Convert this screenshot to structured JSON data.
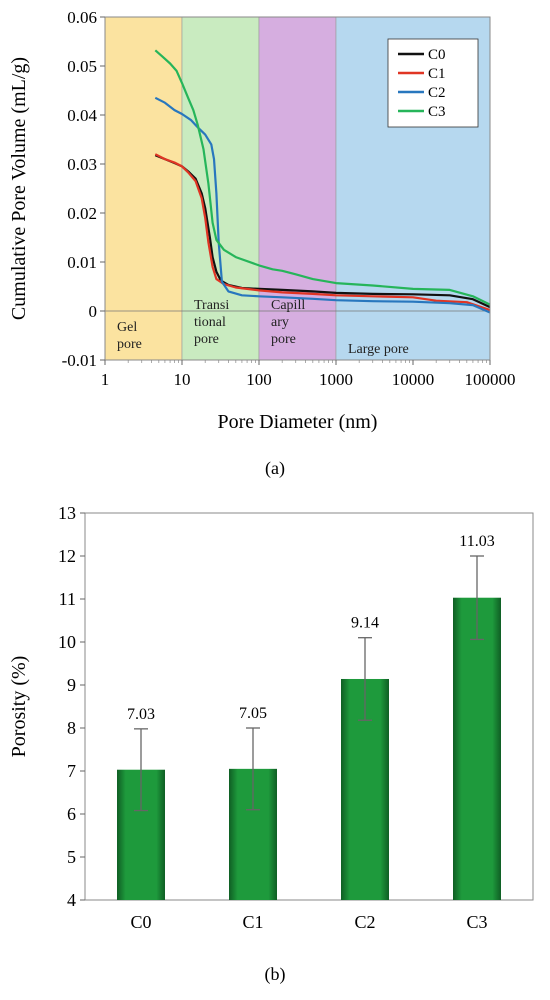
{
  "chart_data": [
    {
      "id": "a",
      "type": "line",
      "panel_label": "(a)",
      "xlabel": "Pore Diameter (nm)",
      "ylabel": "Cumulative Pore Volume (mL/g)",
      "x_scale": "log",
      "xlim": [
        1,
        100000
      ],
      "ylim": [
        -0.01,
        0.06
      ],
      "x_ticks": [
        1,
        10,
        100,
        1000,
        10000,
        100000
      ],
      "x_tick_labels": [
        "1",
        "10",
        "100",
        "1000",
        "10000",
        "100000"
      ],
      "y_ticks": [
        -0.01,
        0,
        0.01,
        0.02,
        0.03,
        0.04,
        0.05,
        0.06
      ],
      "y_tick_labels": [
        "-0.01",
        "0",
        "0.01",
        "0.02",
        "0.03",
        "0.04",
        "0.05",
        "0.06"
      ],
      "grid": false,
      "legend_position": "top-right",
      "regions": [
        {
          "label_lines": [
            "Gel",
            "pore"
          ],
          "x_from": 1,
          "x_to": 10,
          "color": "#fbe3a0"
        },
        {
          "label_lines": [
            "Transi",
            "tional",
            "pore"
          ],
          "x_from": 10,
          "x_to": 100,
          "color": "#c9ebc0"
        },
        {
          "label_lines": [
            "Capill",
            "ary",
            "pore"
          ],
          "x_from": 100,
          "x_to": 1000,
          "color": "#d6aee0"
        },
        {
          "label_lines": [
            "Large pore"
          ],
          "x_from": 1000,
          "x_to": 100000,
          "color": "#b6d8ef"
        }
      ],
      "series": [
        {
          "name": "C0",
          "color": "#111111",
          "points": [
            [
              4.5,
              0.0318
            ],
            [
              6,
              0.031
            ],
            [
              8,
              0.0302
            ],
            [
              10,
              0.0295
            ],
            [
              12,
              0.0285
            ],
            [
              15,
              0.027
            ],
            [
              18,
              0.024
            ],
            [
              20,
              0.021
            ],
            [
              23,
              0.015
            ],
            [
              25,
              0.011
            ],
            [
              28,
              0.008
            ],
            [
              32,
              0.0062
            ],
            [
              40,
              0.0053
            ],
            [
              60,
              0.0047
            ],
            [
              100,
              0.0045
            ],
            [
              200,
              0.0043
            ],
            [
              500,
              0.004
            ],
            [
              1000,
              0.0037
            ],
            [
              3000,
              0.0035
            ],
            [
              10000,
              0.0034
            ],
            [
              30000,
              0.0032
            ],
            [
              60000,
              0.0024
            ],
            [
              100000,
              0.0008
            ]
          ]
        },
        {
          "name": "C1",
          "color": "#e03524",
          "points": [
            [
              4.5,
              0.032
            ],
            [
              6,
              0.031
            ],
            [
              8,
              0.0303
            ],
            [
              10,
              0.0295
            ],
            [
              12,
              0.0283
            ],
            [
              15,
              0.0265
            ],
            [
              18,
              0.023
            ],
            [
              20,
              0.019
            ],
            [
              22,
              0.014
            ],
            [
              25,
              0.009
            ],
            [
              28,
              0.0065
            ],
            [
              35,
              0.0055
            ],
            [
              50,
              0.0048
            ],
            [
              100,
              0.0042
            ],
            [
              200,
              0.0038
            ],
            [
              500,
              0.0035
            ],
            [
              1000,
              0.0032
            ],
            [
              3000,
              0.003
            ],
            [
              10000,
              0.0028
            ],
            [
              20000,
              0.0021
            ],
            [
              50000,
              0.0018
            ],
            [
              100000,
              0.0002
            ]
          ]
        },
        {
          "name": "C2",
          "color": "#2877be",
          "points": [
            [
              4.5,
              0.0435
            ],
            [
              6,
              0.0425
            ],
            [
              8,
              0.041
            ],
            [
              10,
              0.0402
            ],
            [
              13,
              0.039
            ],
            [
              16,
              0.0375
            ],
            [
              20,
              0.036
            ],
            [
              24,
              0.034
            ],
            [
              26,
              0.031
            ],
            [
              28,
              0.024
            ],
            [
              30,
              0.014
            ],
            [
              33,
              0.006
            ],
            [
              40,
              0.004
            ],
            [
              60,
              0.0032
            ],
            [
              100,
              0.003
            ],
            [
              200,
              0.0028
            ],
            [
              500,
              0.0025
            ],
            [
              1000,
              0.0022
            ],
            [
              3000,
              0.002
            ],
            [
              10000,
              0.0019
            ],
            [
              30000,
              0.0016
            ],
            [
              60000,
              0.0012
            ],
            [
              100000,
              -0.0003
            ]
          ]
        },
        {
          "name": "C3",
          "color": "#26b55a",
          "points": [
            [
              4.5,
              0.0532
            ],
            [
              5.5,
              0.052
            ],
            [
              7,
              0.0505
            ],
            [
              8.5,
              0.049
            ],
            [
              10,
              0.0465
            ],
            [
              12,
              0.0435
            ],
            [
              14,
              0.041
            ],
            [
              16,
              0.038
            ],
            [
              19,
              0.033
            ],
            [
              22,
              0.026
            ],
            [
              25,
              0.018
            ],
            [
              28,
              0.0145
            ],
            [
              35,
              0.0125
            ],
            [
              50,
              0.011
            ],
            [
              100,
              0.0093
            ],
            [
              150,
              0.0085
            ],
            [
              200,
              0.0082
            ],
            [
              300,
              0.0075
            ],
            [
              500,
              0.0065
            ],
            [
              1000,
              0.0057
            ],
            [
              3000,
              0.0052
            ],
            [
              10000,
              0.0045
            ],
            [
              30000,
              0.0043
            ],
            [
              60000,
              0.003
            ],
            [
              100000,
              0.0013
            ]
          ]
        }
      ]
    },
    {
      "id": "b",
      "type": "bar",
      "panel_label": "(b)",
      "xlabel": "",
      "ylabel": "Porosity (%)",
      "ylim": [
        4,
        13
      ],
      "y_ticks": [
        4,
        5,
        6,
        7,
        8,
        9,
        10,
        11,
        12,
        13
      ],
      "categories": [
        "C0",
        "C1",
        "C2",
        "C3"
      ],
      "values": [
        7.03,
        7.05,
        9.14,
        11.03
      ],
      "value_labels": [
        "7.03",
        "7.05",
        "9.14",
        "11.03"
      ],
      "error": [
        0.95,
        0.95,
        0.96,
        0.97
      ],
      "bar_color": "#1e9a3c",
      "grid": false
    }
  ]
}
